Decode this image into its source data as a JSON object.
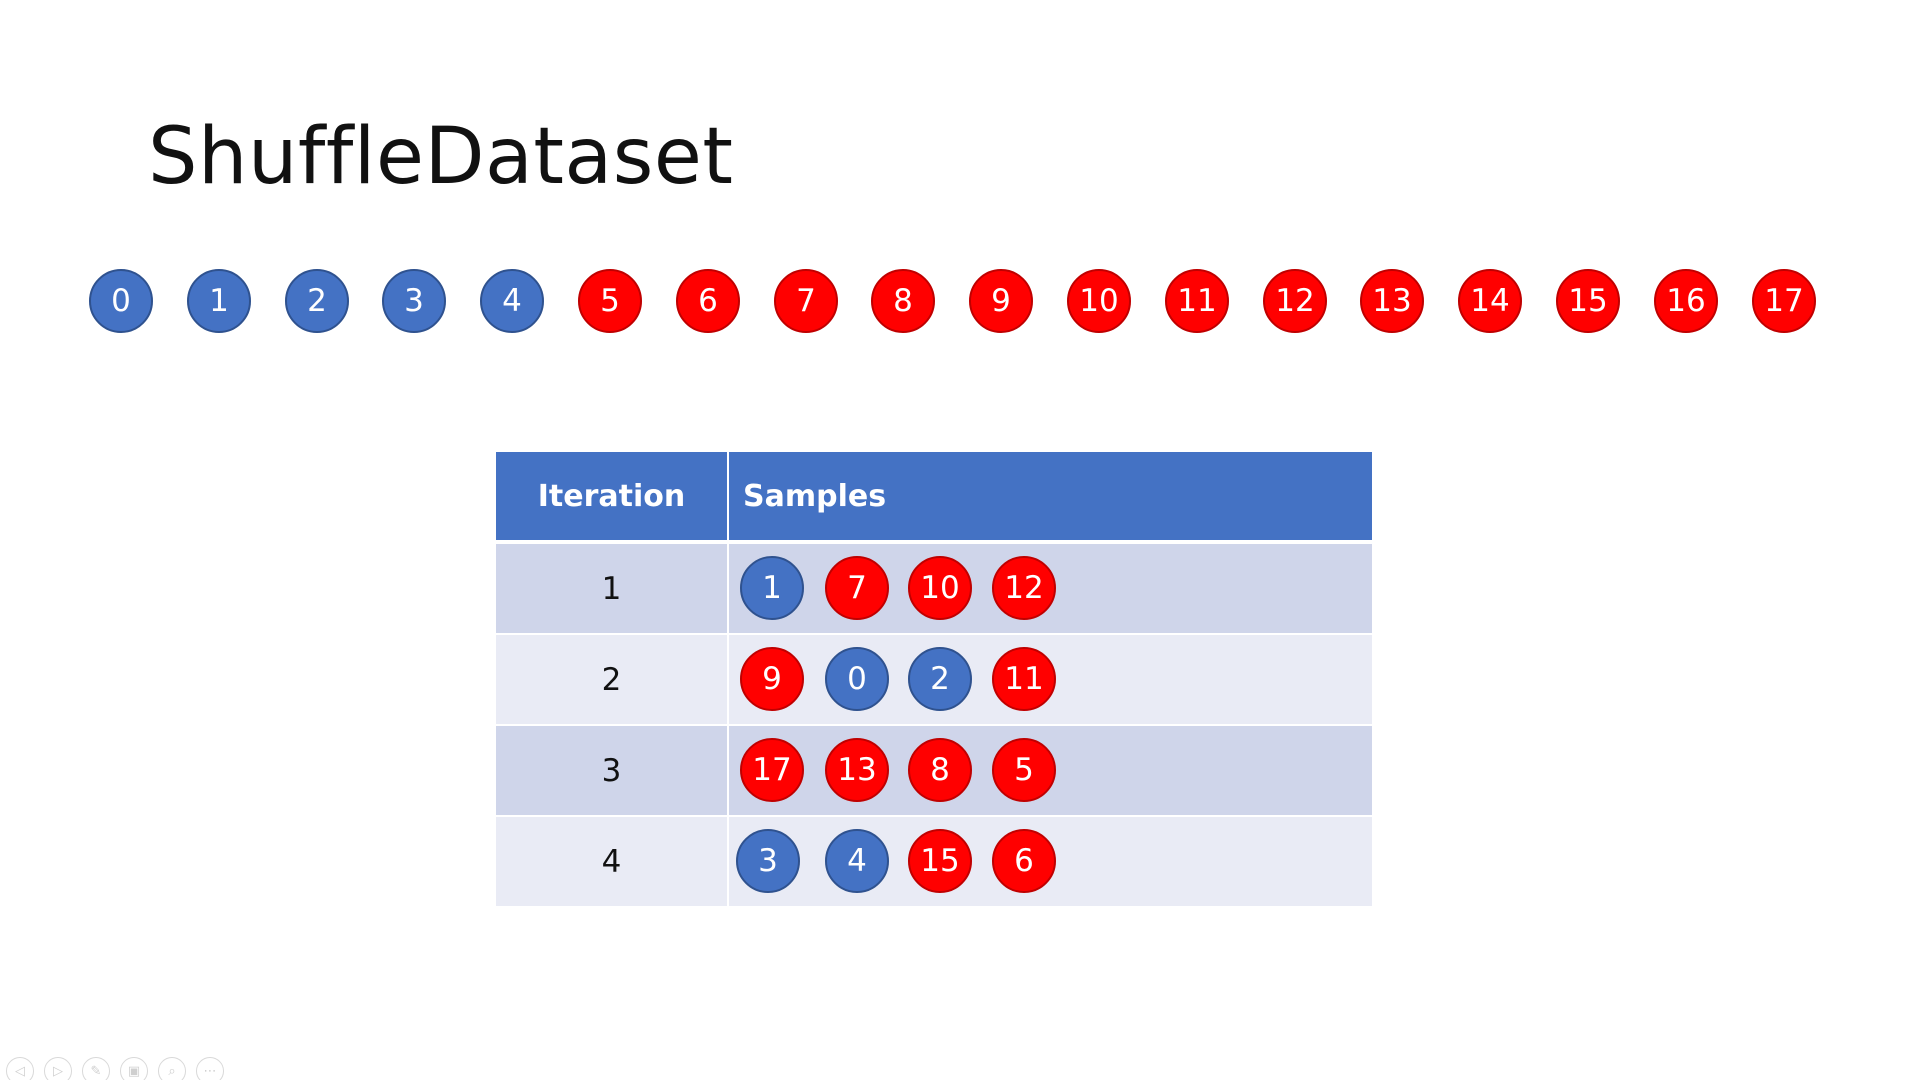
{
  "slide": {
    "title": "ShuffleDataset"
  },
  "colors": {
    "blue": "#4472c4",
    "red": "#ff0000",
    "header_bg": "#4472c4",
    "row_odd_bg": "#cfd5ea",
    "row_even_bg": "#e9ebf5"
  },
  "dataset": [
    {
      "label": "0",
      "color": "blue"
    },
    {
      "label": "1",
      "color": "blue"
    },
    {
      "label": "2",
      "color": "blue"
    },
    {
      "label": "3",
      "color": "blue"
    },
    {
      "label": "4",
      "color": "blue"
    },
    {
      "label": "5",
      "color": "red"
    },
    {
      "label": "6",
      "color": "red"
    },
    {
      "label": "7",
      "color": "red"
    },
    {
      "label": "8",
      "color": "red"
    },
    {
      "label": "9",
      "color": "red"
    },
    {
      "label": "10",
      "color": "red"
    },
    {
      "label": "11",
      "color": "red"
    },
    {
      "label": "12",
      "color": "red"
    },
    {
      "label": "13",
      "color": "red"
    },
    {
      "label": "14",
      "color": "red"
    },
    {
      "label": "15",
      "color": "red"
    },
    {
      "label": "16",
      "color": "red"
    },
    {
      "label": "17",
      "color": "red"
    }
  ],
  "table": {
    "headers": {
      "iteration": "Iteration",
      "samples": "Samples"
    },
    "rows": [
      {
        "iteration": "1",
        "samples": [
          {
            "label": "1",
            "color": "blue"
          },
          {
            "label": "7",
            "color": "red"
          },
          {
            "label": "10",
            "color": "red"
          },
          {
            "label": "12",
            "color": "red"
          }
        ]
      },
      {
        "iteration": "2",
        "samples": [
          {
            "label": "9",
            "color": "red"
          },
          {
            "label": "0",
            "color": "blue"
          },
          {
            "label": "2",
            "color": "blue"
          },
          {
            "label": "11",
            "color": "red"
          }
        ]
      },
      {
        "iteration": "3",
        "samples": [
          {
            "label": "17",
            "color": "red"
          },
          {
            "label": "13",
            "color": "red"
          },
          {
            "label": "8",
            "color": "red"
          },
          {
            "label": "5",
            "color": "red"
          }
        ]
      },
      {
        "iteration": "4",
        "samples": [
          {
            "label": "3",
            "color": "blue"
          },
          {
            "label": "4",
            "color": "blue"
          },
          {
            "label": "15",
            "color": "red"
          },
          {
            "label": "6",
            "color": "red"
          }
        ]
      }
    ]
  },
  "toolbar": [
    {
      "icon": "previous-icon",
      "glyph": "◁"
    },
    {
      "icon": "next-icon",
      "glyph": "▷"
    },
    {
      "icon": "pen-icon",
      "glyph": "✎"
    },
    {
      "icon": "slides-icon",
      "glyph": "▣"
    },
    {
      "icon": "zoom-icon",
      "glyph": "⌕"
    },
    {
      "icon": "more-icon",
      "glyph": "⋯"
    }
  ]
}
